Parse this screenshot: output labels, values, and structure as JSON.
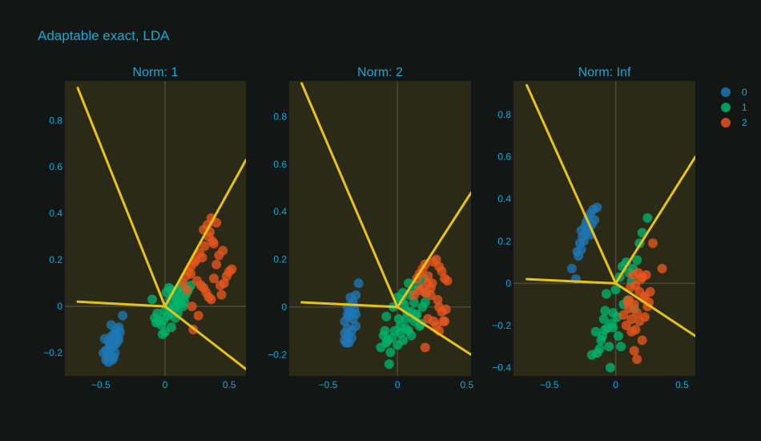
{
  "title": "Adaptable exact, LDA",
  "legend": {
    "placement": "top-right",
    "items": [
      {
        "label": "0",
        "color": "#1f77b4"
      },
      {
        "label": "1",
        "color": "#00b36b"
      },
      {
        "label": "2",
        "color": "#e8561f"
      }
    ]
  },
  "colors": {
    "background": "#121716",
    "plot_background": "#2b2a17",
    "text": "#19a8d6",
    "boundary": "#e6c21a",
    "zero_line": "#4a4a3a"
  },
  "chart_data": [
    {
      "type": "scatter",
      "title": "Norm: 1",
      "xlim": [
        -0.78,
        0.63
      ],
      "ylim": [
        -0.3,
        0.97
      ],
      "x_ticks": [
        "−0.5",
        "0",
        "0.5"
      ],
      "x_tick_values": [
        -0.5,
        0,
        0.5
      ],
      "y_ticks": [
        "−0.2",
        "0",
        "0.2",
        "0.4",
        "0.6",
        "0.8"
      ],
      "y_tick_values": [
        -0.2,
        0,
        0.2,
        0.4,
        0.6,
        0.8
      ],
      "grid": false,
      "boundary_center": [
        0,
        0
      ],
      "boundaries": [
        [
          [
            -0.68,
            0.94
          ],
          [
            0,
            0
          ]
        ],
        [
          [
            -0.68,
            0.02
          ],
          [
            0,
            0
          ]
        ],
        [
          [
            0,
            0
          ],
          [
            0.63,
            0.63
          ]
        ],
        [
          [
            0,
            0
          ],
          [
            0.63,
            -0.27
          ]
        ]
      ],
      "series": [
        {
          "name": "0",
          "x": [
            -0.33,
            -0.36,
            -0.38,
            -0.4,
            -0.42,
            -0.44,
            -0.36,
            -0.38,
            -0.4,
            -0.42,
            -0.46,
            -0.35,
            -0.39,
            -0.43,
            -0.45,
            -0.48,
            -0.37,
            -0.41,
            -0.44,
            -0.47,
            -0.4,
            -0.43,
            -0.38,
            -0.46,
            -0.42
          ],
          "y": [
            -0.04,
            -0.09,
            -0.1,
            -0.12,
            -0.13,
            -0.15,
            -0.14,
            -0.16,
            -0.17,
            -0.18,
            -0.19,
            -0.11,
            -0.2,
            -0.21,
            -0.22,
            -0.2,
            -0.15,
            -0.23,
            -0.24,
            -0.14,
            -0.22,
            -0.17,
            -0.12,
            -0.23,
            -0.08
          ]
        },
        {
          "name": "1",
          "x": [
            -0.1,
            -0.08,
            -0.05,
            -0.03,
            0.0,
            0.02,
            0.04,
            0.06,
            0.08,
            0.1,
            0.12,
            0.14,
            -0.06,
            -0.02,
            0.01,
            0.03,
            0.05,
            0.07,
            0.09,
            0.11,
            0.13,
            0.15,
            0.17,
            0.0,
            0.02,
            0.05,
            0.08,
            0.1,
            -0.07,
            0.04,
            0.12,
            0.16,
            0.18,
            0.2,
            -0.01,
            0.06,
            0.09,
            0.14
          ],
          "y": [
            0.03,
            -0.05,
            -0.06,
            -0.08,
            -0.11,
            -0.04,
            -0.03,
            -0.01,
            0.0,
            0.02,
            0.04,
            0.06,
            -0.03,
            -0.12,
            0.06,
            0.08,
            0.07,
            0.05,
            0.03,
            0.01,
            0.09,
            0.02,
            0.06,
            -0.02,
            0.0,
            -0.09,
            -0.05,
            -0.03,
            -0.07,
            0.03,
            0.08,
            0.05,
            0.07,
            0.09,
            -0.06,
            0.05,
            0.07,
            0.0
          ]
        },
        {
          "name": "2",
          "x": [
            0.14,
            0.16,
            0.18,
            0.2,
            0.22,
            0.24,
            0.26,
            0.28,
            0.3,
            0.32,
            0.34,
            0.36,
            0.38,
            0.4,
            0.42,
            0.44,
            0.46,
            0.48,
            0.5,
            0.52,
            0.3,
            0.33,
            0.36,
            0.38,
            0.34,
            0.31,
            0.27,
            0.23,
            0.2,
            0.25,
            0.29,
            0.35,
            0.4,
            0.45,
            0.21,
            0.17,
            0.37,
            0.43
          ],
          "y": [
            0.1,
            0.13,
            0.15,
            0.17,
            -0.1,
            0.2,
            -0.04,
            0.09,
            0.08,
            0.06,
            0.04,
            0.03,
            0.12,
            0.18,
            0.22,
            0.05,
            0.1,
            0.13,
            0.15,
            0.16,
            0.33,
            0.35,
            0.38,
            0.27,
            0.3,
            0.26,
            0.23,
            0.19,
            0.14,
            0.11,
            0.21,
            0.32,
            0.36,
            0.24,
            0.0,
            0.07,
            0.28,
            0.09
          ]
        }
      ]
    },
    {
      "type": "scatter",
      "title": "Norm: 2",
      "xlim": [
        -0.78,
        0.53
      ],
      "ylim": [
        -0.29,
        0.95
      ],
      "x_ticks": [
        "−0.5",
        "0",
        "0.5"
      ],
      "x_tick_values": [
        -0.5,
        0,
        0.5
      ],
      "y_ticks": [
        "−0.2",
        "0",
        "0.2",
        "0.4",
        "0.6",
        "0.8"
      ],
      "y_tick_values": [
        -0.2,
        0,
        0.2,
        0.4,
        0.6,
        0.8
      ],
      "grid": false,
      "boundary_center": [
        0,
        0
      ],
      "boundaries": [
        [
          [
            -0.69,
            0.94
          ],
          [
            0,
            0
          ]
        ],
        [
          [
            -0.69,
            0.02
          ],
          [
            0,
            0
          ]
        ],
        [
          [
            0,
            0
          ],
          [
            0.53,
            0.48
          ]
        ],
        [
          [
            0,
            0
          ],
          [
            0.53,
            -0.2
          ]
        ]
      ],
      "series": [
        {
          "name": "0",
          "x": [
            -0.28,
            -0.3,
            -0.32,
            -0.34,
            -0.36,
            -0.38,
            -0.3,
            -0.33,
            -0.36,
            -0.38,
            -0.31,
            -0.35,
            -0.37,
            -0.33,
            -0.34,
            -0.36,
            -0.32,
            -0.38,
            -0.35,
            -0.3,
            -0.36
          ],
          "y": [
            0.1,
            0.05,
            0.02,
            -0.02,
            -0.03,
            -0.06,
            -0.08,
            -0.1,
            -0.12,
            -0.14,
            -0.01,
            -0.04,
            -0.15,
            -0.13,
            0.04,
            -0.09,
            -0.05,
            -0.11,
            -0.15,
            -0.03,
            0.0
          ]
        },
        {
          "name": "1",
          "x": [
            -0.1,
            -0.08,
            -0.06,
            -0.04,
            -0.02,
            0.0,
            0.02,
            0.04,
            0.06,
            0.08,
            0.1,
            0.12,
            0.14,
            0.16,
            0.18,
            0.2,
            -0.12,
            -0.09,
            -0.05,
            0.01,
            0.03,
            0.05,
            0.07,
            0.09,
            0.11,
            0.13,
            0.15,
            0.17,
            -0.03,
            0.0,
            0.02,
            0.06,
            0.1,
            -0.07,
            0.04,
            0.08,
            0.12,
            0.19,
            0.21,
            -0.08
          ],
          "y": [
            -0.12,
            -0.15,
            -0.24,
            -0.13,
            -0.1,
            -0.16,
            -0.08,
            -0.14,
            -0.05,
            -0.1,
            -0.12,
            -0.06,
            -0.03,
            -0.08,
            0.0,
            0.02,
            -0.17,
            -0.1,
            -0.19,
            -0.05,
            0.03,
            0.01,
            -0.02,
            0.05,
            0.07,
            -0.04,
            0.09,
            -0.07,
            0.0,
            0.04,
            -0.11,
            -0.09,
            -0.02,
            -0.14,
            0.06,
            0.1,
            0.02,
            0.12,
            0.06,
            -0.04
          ]
        },
        {
          "name": "2",
          "x": [
            0.14,
            0.16,
            0.18,
            0.2,
            0.22,
            0.24,
            0.26,
            0.28,
            0.3,
            0.32,
            0.34,
            0.36,
            0.2,
            0.22,
            0.24,
            0.28,
            0.3,
            0.32,
            0.34,
            0.26,
            0.18,
            0.3,
            0.33,
            0.35,
            0.22,
            0.25,
            0.29,
            0.12,
            0.16,
            0.2
          ],
          "y": [
            0.12,
            0.14,
            0.16,
            0.18,
            0.1,
            0.08,
            0.19,
            0.2,
            0.17,
            0.15,
            0.12,
            0.11,
            -0.17,
            -0.05,
            0.05,
            -0.08,
            -0.1,
            -0.02,
            -0.06,
            -0.06,
            0.08,
            0.0,
            -0.06,
            -0.01,
            0.13,
            0.1,
            0.03,
            0.05,
            0.07,
            0.06
          ]
        }
      ]
    },
    {
      "type": "scatter",
      "title": "Norm: Inf",
      "xlim": [
        -0.77,
        0.6
      ],
      "ylim": [
        -0.44,
        0.96
      ],
      "x_ticks": [
        "−0.5",
        "0",
        "0.5"
      ],
      "x_tick_values": [
        -0.5,
        0,
        0.5
      ],
      "y_ticks": [
        "−0.4",
        "−0.2",
        "0",
        "0.2",
        "0.4",
        "0.6",
        "0.8"
      ],
      "y_tick_values": [
        -0.4,
        -0.2,
        0,
        0.2,
        0.4,
        0.6,
        0.8
      ],
      "grid": false,
      "boundary_center": [
        0,
        0
      ],
      "boundaries": [
        [
          [
            -0.67,
            0.94
          ],
          [
            0,
            0
          ]
        ],
        [
          [
            -0.67,
            0.02
          ],
          [
            0,
            0
          ]
        ],
        [
          [
            0,
            0
          ],
          [
            0.6,
            0.6
          ]
        ],
        [
          [
            0,
            0
          ],
          [
            0.6,
            -0.25
          ]
        ]
      ],
      "series": [
        {
          "name": "0",
          "x": [
            -0.33,
            -0.3,
            -0.28,
            -0.26,
            -0.24,
            -0.22,
            -0.2,
            -0.18,
            -0.16,
            -0.14,
            -0.27,
            -0.25,
            -0.23,
            -0.21,
            -0.19,
            -0.17,
            -0.29,
            -0.26,
            -0.22,
            -0.19
          ],
          "y": [
            0.07,
            0.02,
            0.13,
            0.16,
            0.2,
            0.24,
            0.26,
            0.28,
            0.3,
            0.36,
            0.19,
            0.22,
            0.27,
            0.31,
            0.33,
            0.35,
            0.15,
            0.25,
            0.29,
            0.23
          ]
        },
        {
          "name": "1",
          "x": [
            -0.18,
            -0.15,
            -0.12,
            -0.1,
            -0.08,
            -0.06,
            -0.04,
            -0.02,
            0.0,
            0.02,
            0.04,
            0.06,
            0.08,
            0.1,
            0.12,
            0.14,
            0.16,
            0.18,
            0.2,
            0.24,
            -0.14,
            -0.11,
            -0.08,
            -0.05,
            -0.03,
            0.01,
            0.03,
            0.05,
            -0.09,
            -0.07,
            -0.02,
            0.09,
            0.13
          ],
          "y": [
            -0.34,
            -0.23,
            -0.31,
            -0.25,
            -0.22,
            -0.21,
            -0.4,
            -0.14,
            -0.03,
            -0.25,
            -0.3,
            -0.1,
            0.1,
            0.05,
            0.01,
            -0.12,
            0.11,
            0.19,
            0.24,
            0.31,
            -0.33,
            -0.27,
            -0.13,
            -0.3,
            -0.19,
            -0.16,
            0.03,
            0.08,
            -0.17,
            -0.05,
            -0.21,
            -0.08,
            0.07
          ]
        },
        {
          "name": "2",
          "x": [
            0.06,
            0.08,
            0.1,
            0.12,
            0.14,
            0.16,
            0.18,
            0.2,
            0.22,
            0.24,
            0.26,
            0.28,
            0.35,
            0.1,
            0.13,
            0.15,
            0.17,
            0.19,
            0.21,
            0.23,
            0.11,
            0.14,
            0.16,
            0.18,
            0.2,
            0.12,
            0.09,
            0.22,
            0.25,
            0.15
          ],
          "y": [
            -0.15,
            -0.2,
            -0.12,
            -0.23,
            -0.32,
            -0.36,
            -0.18,
            -0.27,
            -0.16,
            -0.11,
            -0.04,
            0.19,
            0.07,
            -0.08,
            0.04,
            -0.22,
            0.05,
            0.02,
            -0.07,
            0.04,
            -0.02,
            -0.1,
            -0.14,
            -0.04,
            0.03,
            -0.17,
            -0.09,
            -0.06,
            -0.09,
            -0.01
          ]
        }
      ]
    }
  ]
}
